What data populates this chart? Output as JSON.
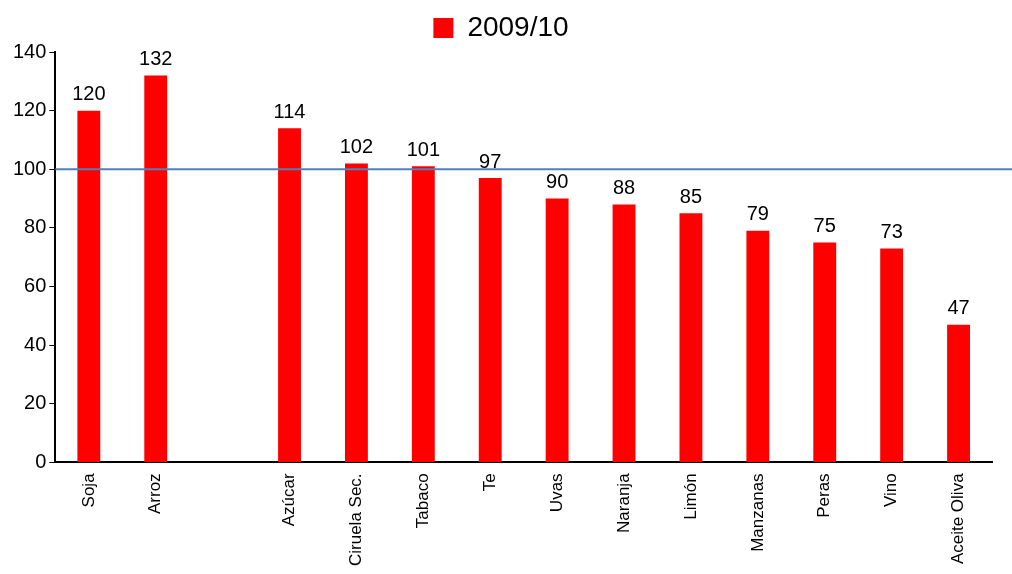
{
  "chart_data": {
    "type": "bar",
    "categories": [
      "Soja",
      "Arroz",
      null,
      "Azúcar",
      "Ciruela Sec.",
      "Tabaco",
      "Te",
      "Uvas",
      "Naranja",
      "Limón",
      "Manzanas",
      "Peras",
      "Vino",
      "Aceite Oliva"
    ],
    "series": [
      {
        "name": "2009/10",
        "color": "#ff0000",
        "values": [
          120,
          132,
          null,
          114,
          102,
          101,
          97,
          90,
          88,
          85,
          79,
          75,
          73,
          47
        ]
      }
    ],
    "ylim": [
      0,
      140
    ],
    "yticks": [
      0,
      20,
      40,
      60,
      80,
      100,
      120,
      140
    ],
    "ref_lines": [
      {
        "axis": "y",
        "value": 100,
        "color": "#4f81bd"
      }
    ],
    "data_labels": true,
    "grid": false,
    "legend": "top"
  }
}
